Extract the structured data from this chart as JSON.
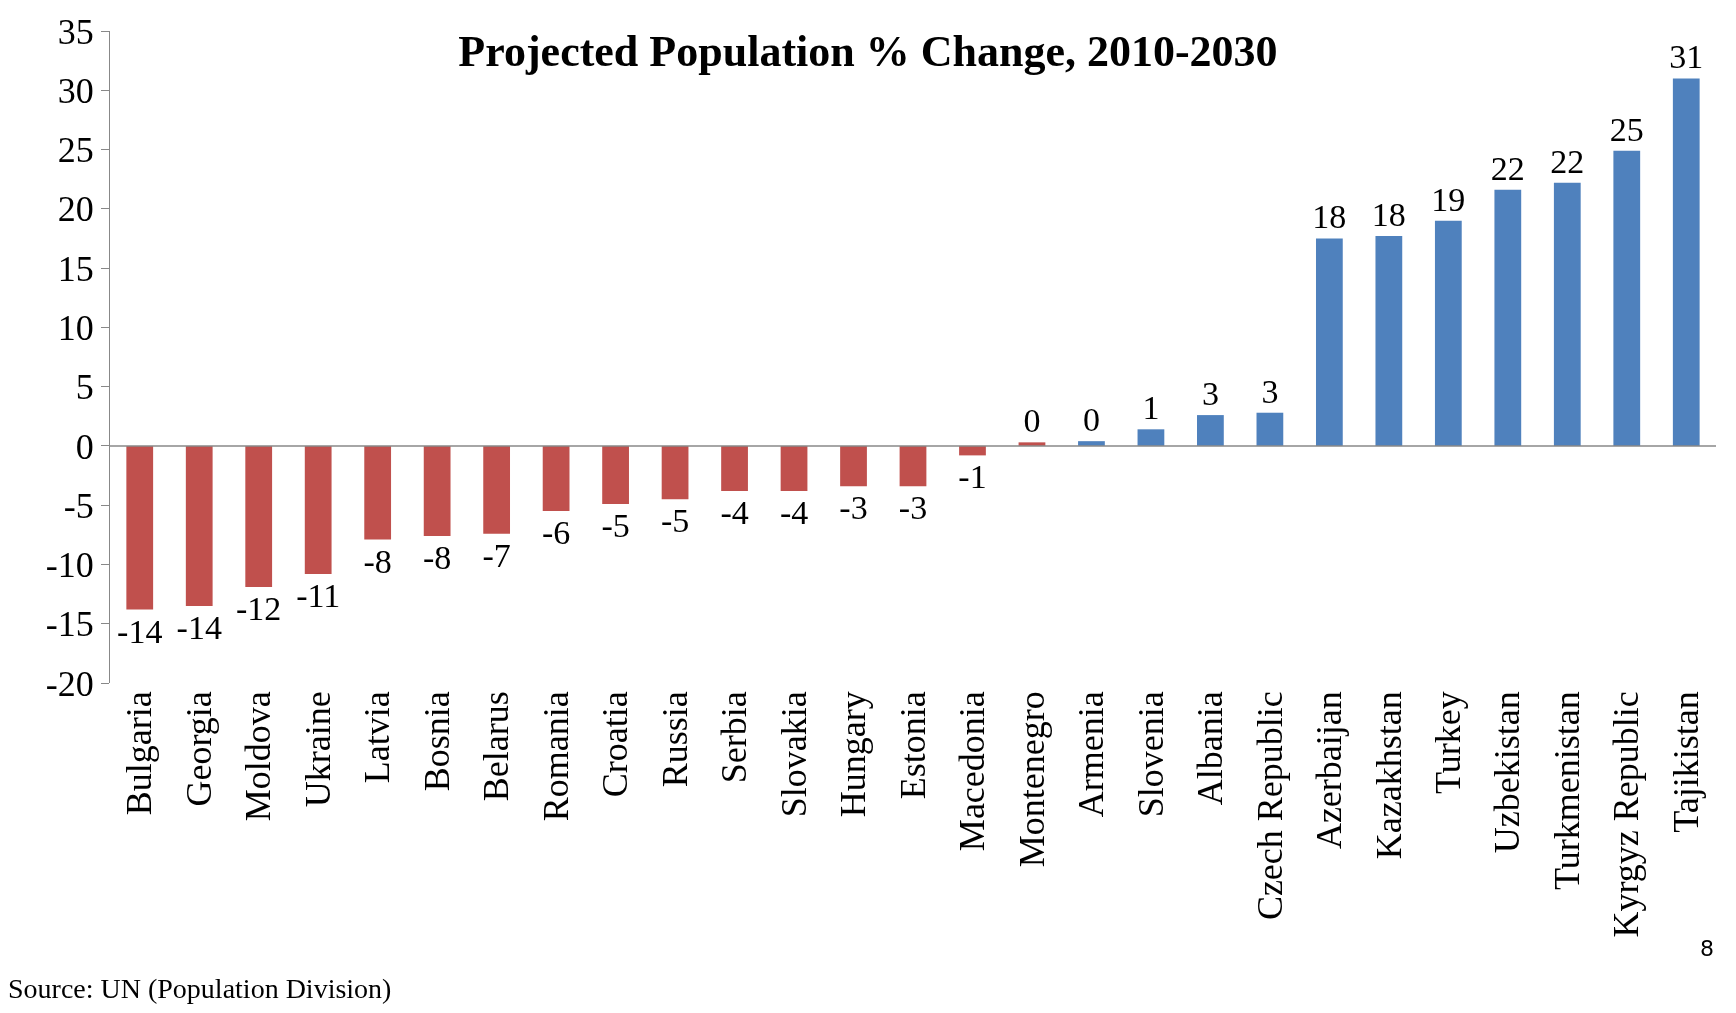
{
  "chart_data": {
    "type": "bar",
    "title": "Projected Population % Change, 2010-2030",
    "categories": [
      "Bulgaria",
      "Georgia",
      "Moldova",
      "Ukraine",
      "Latvia",
      "Bosnia",
      "Belarus",
      "Romania",
      "Croatia",
      "Russia",
      "Serbia",
      "Slovakia",
      "Hungary",
      "Estonia",
      "Macedonia",
      "Montenegro",
      "Armenia",
      "Slovenia",
      "Albania",
      "Czech Republic",
      "Azerbaijan",
      "Kazakhstan",
      "Turkey",
      "Uzbekistan",
      "Turkmenistan",
      "Kyrgyz Republic",
      "Tajikistan"
    ],
    "values": [
      -13.8,
      -13.5,
      -11.9,
      -10.8,
      -7.9,
      -7.6,
      -7.4,
      -5.5,
      -4.9,
      -4.5,
      -3.8,
      -3.8,
      -3.4,
      -3.4,
      -0.8,
      0.3,
      0.4,
      1.4,
      2.6,
      2.8,
      17.5,
      17.7,
      19.0,
      21.6,
      22.2,
      24.9,
      31.0
    ],
    "value_labels": [
      "-14",
      "-14",
      "-12",
      "-11",
      "-8",
      "-8",
      "-7",
      "-6",
      "-5",
      "-5",
      "-4",
      "-4",
      "-3",
      "-3",
      "-1",
      "0",
      "0",
      "1",
      "3",
      "3",
      "18",
      "18",
      "19",
      "22",
      "22",
      "25",
      "31"
    ],
    "colors": [
      "#c0504d",
      "#c0504d",
      "#c0504d",
      "#c0504d",
      "#c0504d",
      "#c0504d",
      "#c0504d",
      "#c0504d",
      "#c0504d",
      "#c0504d",
      "#c0504d",
      "#c0504d",
      "#c0504d",
      "#c0504d",
      "#c0504d",
      "#c0504d",
      "#4f81bd",
      "#4f81bd",
      "#4f81bd",
      "#4f81bd",
      "#4f81bd",
      "#4f81bd",
      "#4f81bd",
      "#4f81bd",
      "#4f81bd",
      "#4f81bd",
      "#4f81bd"
    ],
    "ylim": [
      -20,
      35
    ],
    "yticks": [
      -20,
      -15,
      -10,
      -5,
      0,
      5,
      10,
      15,
      20,
      25,
      30,
      35
    ],
    "annotations": [
      "Source: UN (Population Division)",
      "8"
    ]
  }
}
